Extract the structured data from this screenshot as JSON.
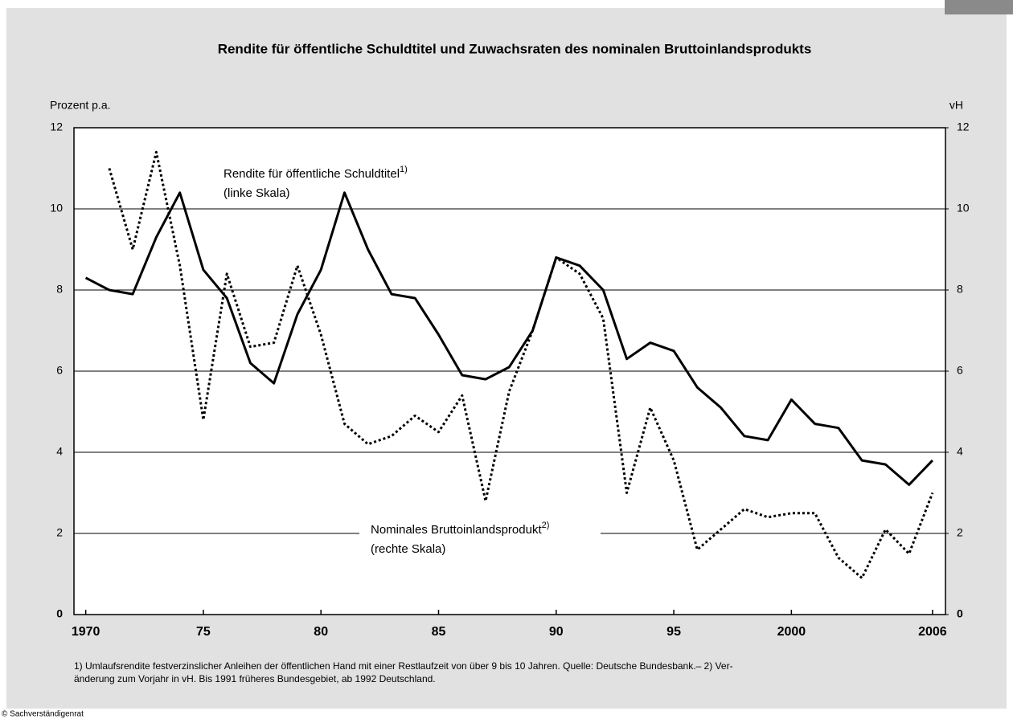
{
  "chart_data": {
    "type": "line",
    "title": "Rendite für öffentliche Schuldtitel und Zuwachsraten des nominalen Bruttoinlandsprodukts",
    "ylabel": "Prozent p.a.",
    "y2label": "vH",
    "x": [
      1970,
      1971,
      1972,
      1973,
      1974,
      1975,
      1976,
      1977,
      1978,
      1979,
      1980,
      1981,
      1982,
      1983,
      1984,
      1985,
      1986,
      1987,
      1988,
      1989,
      1990,
      1991,
      1992,
      1993,
      1994,
      1995,
      1996,
      1997,
      1998,
      1999,
      2000,
      2001,
      2002,
      2003,
      2004,
      2005,
      2006
    ],
    "xlim": [
      1969.5,
      2006.55
    ],
    "xticks": [
      1970,
      {
        "value": 1975,
        "label": "75"
      },
      {
        "value": 1980,
        "label": "80"
      },
      {
        "value": 1985,
        "label": "85"
      },
      {
        "value": 1990,
        "label": "90"
      },
      {
        "value": 1995,
        "label": "95"
      },
      2000,
      2006
    ],
    "ylim": [
      0,
      12
    ],
    "yticks": [
      0,
      2,
      4,
      6,
      8,
      10,
      12
    ],
    "y2lim": [
      0,
      12
    ],
    "y2ticks": [
      0,
      2,
      4,
      6,
      8,
      10,
      12
    ],
    "grid": true,
    "series": [
      {
        "name": "Rendite für öffentliche Schuldtitel",
        "note": "1)",
        "scale": "(linke Skala)",
        "color": "#000000",
        "style": "solid",
        "values": [
          8.3,
          8.0,
          7.9,
          9.3,
          10.4,
          8.5,
          7.8,
          6.2,
          5.7,
          7.4,
          8.5,
          10.4,
          9.0,
          7.9,
          7.8,
          6.9,
          5.9,
          5.8,
          6.1,
          7.0,
          8.8,
          8.6,
          8.0,
          6.3,
          6.7,
          6.5,
          5.6,
          5.1,
          4.4,
          4.3,
          5.3,
          4.7,
          4.6,
          3.8,
          3.7,
          3.2,
          3.8
        ]
      },
      {
        "name": "Nominales Bruttoinlandsprodukt",
        "note": "2)",
        "scale": "(rechte Skala)",
        "color": "#000000",
        "style": "dotted",
        "axis": "y2",
        "values": [
          null,
          11.0,
          9.0,
          11.4,
          8.6,
          4.8,
          8.4,
          6.6,
          6.7,
          8.6,
          6.9,
          4.7,
          4.2,
          4.4,
          4.9,
          4.5,
          5.4,
          2.8,
          5.5,
          7.0,
          8.8,
          8.4,
          7.3,
          3.0,
          5.1,
          3.8,
          1.6,
          2.1,
          2.6,
          2.4,
          2.5,
          2.5,
          1.4,
          0.9,
          2.1,
          1.5,
          3.0
        ]
      }
    ],
    "footnote": [
      "1) Umlaufsrendite festverzinslicher Anleihen der öffentlichen Hand mit einer Restlaufzeit von über 9 bis 10 Jahren. Quelle: Deutsche Bundesbank.– 2) Ver-",
      "änderung zum Vorjahr in vH. Bis 1991 früheres Bundesgebiet, ab 1992 Deutschland."
    ],
    "copyright": "© Sachverständigenrat"
  }
}
